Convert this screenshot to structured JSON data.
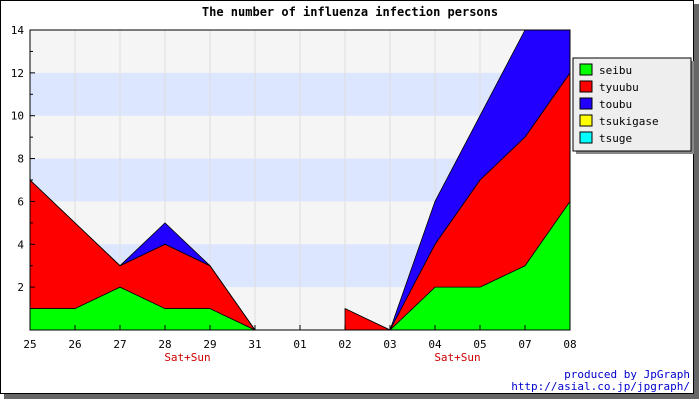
{
  "chart_data": {
    "type": "area",
    "stacked": true,
    "title": "The number of influenza infection persons",
    "xlabel": "",
    "ylabel": "",
    "categories": [
      "25",
      "26",
      "27",
      "28",
      "29",
      "31",
      "01",
      "02",
      "03",
      "04",
      "05",
      "07",
      "08"
    ],
    "category_notes": [
      {
        "after": "28",
        "text": "Sat+Sun"
      },
      {
        "after": "04",
        "text": "Sat+Sun"
      }
    ],
    "ylim": [
      0,
      14
    ],
    "yticks": [
      2,
      4,
      6,
      8,
      10,
      12,
      14
    ],
    "grid": {
      "x": true,
      "y": true,
      "band_fill": "alternating"
    },
    "legend_position": "right",
    "series": [
      {
        "name": "seibu",
        "color": "#00ff00",
        "values": [
          1,
          1,
          2,
          1,
          1,
          0,
          null,
          0,
          0,
          2,
          2,
          3,
          6
        ]
      },
      {
        "name": "tyuubu",
        "color": "#ff0000",
        "values": [
          6,
          4,
          1,
          3,
          2,
          0,
          null,
          1,
          0,
          2,
          5,
          6,
          6
        ]
      },
      {
        "name": "toubu",
        "color": "#2200ff",
        "values": [
          0,
          0,
          0,
          1,
          0,
          0,
          null,
          0,
          0,
          2,
          3,
          5,
          2
        ]
      },
      {
        "name": "tsukigase",
        "color": "#ffff00",
        "values": [
          0,
          0,
          0,
          0,
          0,
          0,
          null,
          0,
          0,
          0,
          0,
          0,
          0
        ]
      },
      {
        "name": "tsuge",
        "color": "#00ffff",
        "values": [
          0,
          0,
          0,
          0,
          0,
          0,
          null,
          0,
          0,
          0,
          0,
          0,
          0
        ]
      }
    ],
    "colors": {
      "plot_background": "#f5f5f5",
      "band_fill": "#dde6ff",
      "note_text": "#cc0000",
      "credit_text": "#0000cc"
    }
  },
  "footer": {
    "credit_line1": "produced by JpGraph",
    "credit_line2": "http://asial.co.jp/jpgraph/"
  }
}
